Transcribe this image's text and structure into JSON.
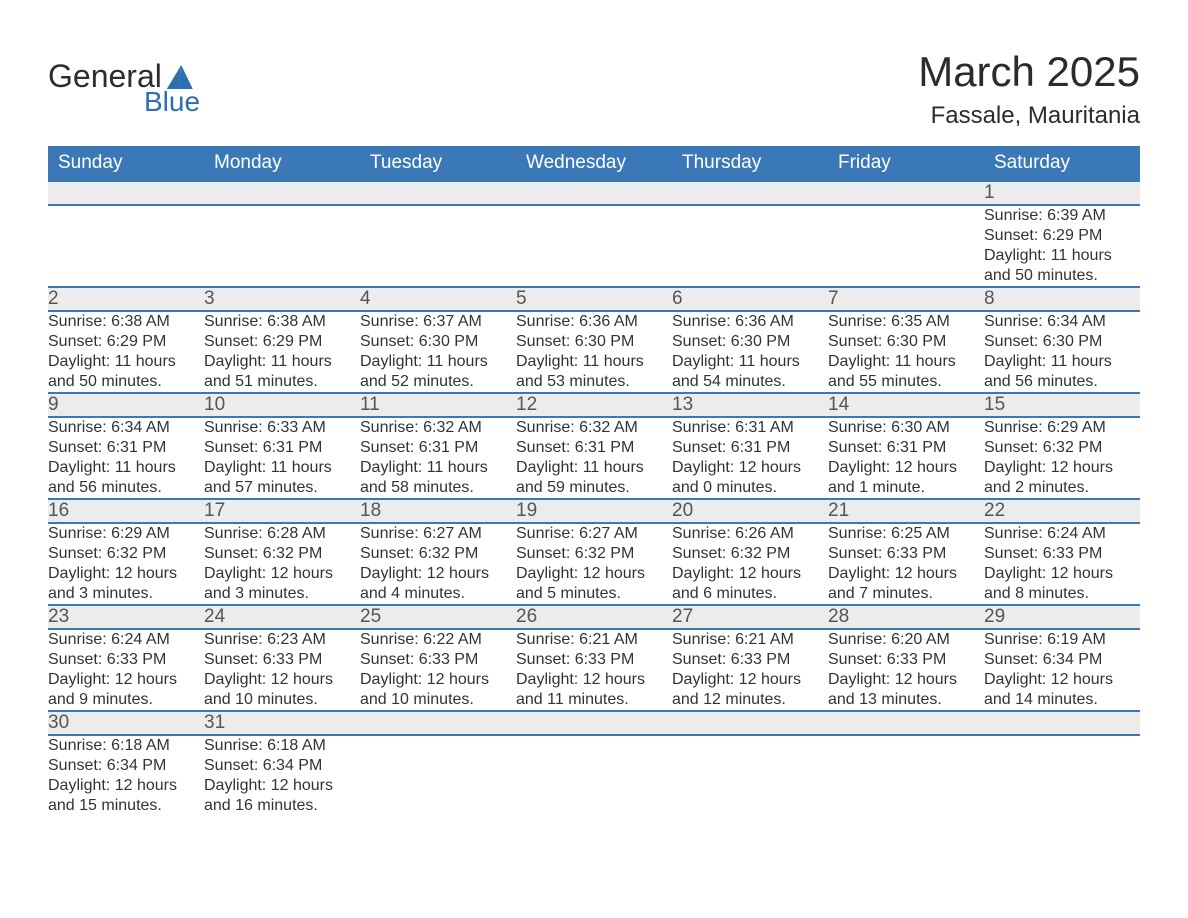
{
  "brand": {
    "word1": "General",
    "word2": "Blue"
  },
  "title": "March 2025",
  "location": "Fassale, Mauritania",
  "colors": {
    "header_bg": "#3a78b7",
    "header_fg": "#ffffff",
    "daynum_bg": "#ececec",
    "body_fg": "#333333",
    "rule": "#3a78b7",
    "logo_blue": "#2f6eaf"
  },
  "weekdays": [
    "Sunday",
    "Monday",
    "Tuesday",
    "Wednesday",
    "Thursday",
    "Friday",
    "Saturday"
  ],
  "first_weekday_index": 6,
  "days": [
    {
      "n": 1,
      "sunrise": "6:39 AM",
      "sunset": "6:29 PM",
      "daylight": "11 hours and 50 minutes."
    },
    {
      "n": 2,
      "sunrise": "6:38 AM",
      "sunset": "6:29 PM",
      "daylight": "11 hours and 50 minutes."
    },
    {
      "n": 3,
      "sunrise": "6:38 AM",
      "sunset": "6:29 PM",
      "daylight": "11 hours and 51 minutes."
    },
    {
      "n": 4,
      "sunrise": "6:37 AM",
      "sunset": "6:30 PM",
      "daylight": "11 hours and 52 minutes."
    },
    {
      "n": 5,
      "sunrise": "6:36 AM",
      "sunset": "6:30 PM",
      "daylight": "11 hours and 53 minutes."
    },
    {
      "n": 6,
      "sunrise": "6:36 AM",
      "sunset": "6:30 PM",
      "daylight": "11 hours and 54 minutes."
    },
    {
      "n": 7,
      "sunrise": "6:35 AM",
      "sunset": "6:30 PM",
      "daylight": "11 hours and 55 minutes."
    },
    {
      "n": 8,
      "sunrise": "6:34 AM",
      "sunset": "6:30 PM",
      "daylight": "11 hours and 56 minutes."
    },
    {
      "n": 9,
      "sunrise": "6:34 AM",
      "sunset": "6:31 PM",
      "daylight": "11 hours and 56 minutes."
    },
    {
      "n": 10,
      "sunrise": "6:33 AM",
      "sunset": "6:31 PM",
      "daylight": "11 hours and 57 minutes."
    },
    {
      "n": 11,
      "sunrise": "6:32 AM",
      "sunset": "6:31 PM",
      "daylight": "11 hours and 58 minutes."
    },
    {
      "n": 12,
      "sunrise": "6:32 AM",
      "sunset": "6:31 PM",
      "daylight": "11 hours and 59 minutes."
    },
    {
      "n": 13,
      "sunrise": "6:31 AM",
      "sunset": "6:31 PM",
      "daylight": "12 hours and 0 minutes."
    },
    {
      "n": 14,
      "sunrise": "6:30 AM",
      "sunset": "6:31 PM",
      "daylight": "12 hours and 1 minute."
    },
    {
      "n": 15,
      "sunrise": "6:29 AM",
      "sunset": "6:32 PM",
      "daylight": "12 hours and 2 minutes."
    },
    {
      "n": 16,
      "sunrise": "6:29 AM",
      "sunset": "6:32 PM",
      "daylight": "12 hours and 3 minutes."
    },
    {
      "n": 17,
      "sunrise": "6:28 AM",
      "sunset": "6:32 PM",
      "daylight": "12 hours and 3 minutes."
    },
    {
      "n": 18,
      "sunrise": "6:27 AM",
      "sunset": "6:32 PM",
      "daylight": "12 hours and 4 minutes."
    },
    {
      "n": 19,
      "sunrise": "6:27 AM",
      "sunset": "6:32 PM",
      "daylight": "12 hours and 5 minutes."
    },
    {
      "n": 20,
      "sunrise": "6:26 AM",
      "sunset": "6:32 PM",
      "daylight": "12 hours and 6 minutes."
    },
    {
      "n": 21,
      "sunrise": "6:25 AM",
      "sunset": "6:33 PM",
      "daylight": "12 hours and 7 minutes."
    },
    {
      "n": 22,
      "sunrise": "6:24 AM",
      "sunset": "6:33 PM",
      "daylight": "12 hours and 8 minutes."
    },
    {
      "n": 23,
      "sunrise": "6:24 AM",
      "sunset": "6:33 PM",
      "daylight": "12 hours and 9 minutes."
    },
    {
      "n": 24,
      "sunrise": "6:23 AM",
      "sunset": "6:33 PM",
      "daylight": "12 hours and 10 minutes."
    },
    {
      "n": 25,
      "sunrise": "6:22 AM",
      "sunset": "6:33 PM",
      "daylight": "12 hours and 10 minutes."
    },
    {
      "n": 26,
      "sunrise": "6:21 AM",
      "sunset": "6:33 PM",
      "daylight": "12 hours and 11 minutes."
    },
    {
      "n": 27,
      "sunrise": "6:21 AM",
      "sunset": "6:33 PM",
      "daylight": "12 hours and 12 minutes."
    },
    {
      "n": 28,
      "sunrise": "6:20 AM",
      "sunset": "6:33 PM",
      "daylight": "12 hours and 13 minutes."
    },
    {
      "n": 29,
      "sunrise": "6:19 AM",
      "sunset": "6:34 PM",
      "daylight": "12 hours and 14 minutes."
    },
    {
      "n": 30,
      "sunrise": "6:18 AM",
      "sunset": "6:34 PM",
      "daylight": "12 hours and 15 minutes."
    },
    {
      "n": 31,
      "sunrise": "6:18 AM",
      "sunset": "6:34 PM",
      "daylight": "12 hours and 16 minutes."
    }
  ],
  "labels": {
    "sunrise": "Sunrise:",
    "sunset": "Sunset:",
    "daylight": "Daylight:"
  }
}
